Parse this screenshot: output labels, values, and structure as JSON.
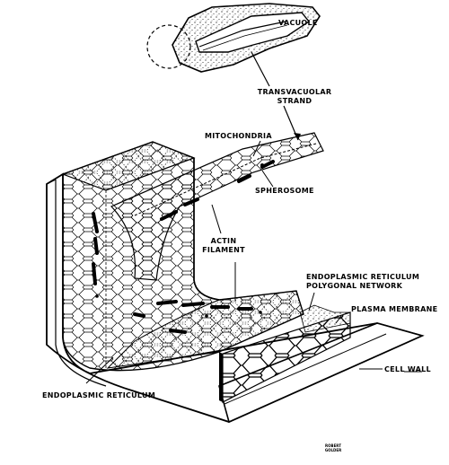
{
  "labels": {
    "vacuole": "VACUOLE",
    "transvacuolar_line1": "TRANSVACUOLAR",
    "transvacuolar_line2": "STRAND",
    "mitochondria": "MITOCHONDRIA",
    "spherosome": "SPHEROSOME",
    "actin_line1": "ACTIN",
    "actin_line2": "FILAMENT",
    "er_network_line1": "ENDOPLASMIC RETICULUM",
    "er_network_line2": "POLYGONAL NETWORK",
    "plasma_membrane": "PLASMA MEMBRANE",
    "cell_wall": "CELL WALL",
    "er": "ENDOPLASMIC RETICULUM"
  },
  "signature": {
    "line1": "ROBERT",
    "line2": "GOLDER"
  }
}
